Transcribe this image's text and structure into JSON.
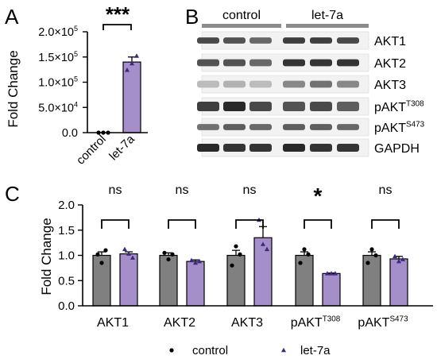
{
  "colors": {
    "control": "#808080",
    "let7a": "#a48fcb",
    "axis": "#000000",
    "blot_band": "#2a2a2a",
    "blot_bg": "#f2f2f2",
    "header_bar": "#8c8c8c"
  },
  "panel_a": {
    "letter": "A",
    "significance": "***",
    "chart_data": {
      "type": "bar",
      "categories": [
        "control",
        "let-7a"
      ],
      "values": [
        0,
        140000
      ],
      "errors": [
        0,
        10000
      ],
      "points": [
        [
          0,
          0,
          0
        ],
        [
          124000,
          137000,
          152000
        ]
      ],
      "ylabel": "Fold Change",
      "ylim": [
        0,
        200000
      ],
      "yticks": [
        0,
        50000,
        100000,
        150000,
        200000
      ],
      "ytick_labels": [
        {
          "mant": "0.0",
          "exp": ""
        },
        {
          "mant": "5.0×10",
          "exp": "4"
        },
        {
          "mant": "1.0×10",
          "exp": "5"
        },
        {
          "mant": "1.5×10",
          "exp": "5"
        },
        {
          "mant": "2.0×10",
          "exp": "5"
        }
      ]
    }
  },
  "panel_b": {
    "letter": "B",
    "group_labels": [
      "control",
      "let-7a"
    ],
    "lanes_per_group": 3,
    "rows": [
      {
        "label": "AKT1",
        "sup": "",
        "intensity": [
          0.75,
          0.7,
          0.6,
          0.8,
          0.8,
          0.75
        ],
        "height": 0.35
      },
      {
        "label": "AKT2",
        "sup": "",
        "intensity": [
          0.7,
          0.7,
          0.6,
          0.85,
          0.85,
          0.85
        ],
        "height": 0.4
      },
      {
        "label": "AKT3",
        "sup": "",
        "intensity": [
          0.2,
          0.25,
          0.2,
          0.45,
          0.55,
          0.45
        ],
        "height": 0.4
      },
      {
        "label": "pAKT",
        "sup": "T308",
        "intensity": [
          0.8,
          0.9,
          0.75,
          0.7,
          0.75,
          0.65
        ],
        "height": 0.55
      },
      {
        "label": "pAKT",
        "sup": "S473",
        "intensity": [
          0.55,
          0.65,
          0.6,
          0.65,
          0.65,
          0.6
        ],
        "height": 0.35
      },
      {
        "label": "GAPDH",
        "sup": "",
        "intensity": [
          0.9,
          0.85,
          0.85,
          0.9,
          0.85,
          0.85
        ],
        "height": 0.45
      }
    ]
  },
  "panel_c": {
    "letter": "C",
    "chart_data": {
      "type": "bar",
      "categories": [
        {
          "label": "AKT1",
          "sup": ""
        },
        {
          "label": "AKT2",
          "sup": ""
        },
        {
          "label": "AKT3",
          "sup": ""
        },
        {
          "label": "pAKT",
          "sup": "T308"
        },
        {
          "label": "pAKT",
          "sup": "S473"
        }
      ],
      "series": [
        {
          "name": "control",
          "marker": "circle",
          "values": [
            1.0,
            1.0,
            1.0,
            1.0,
            1.0
          ],
          "errors": [
            0.07,
            0.05,
            0.1,
            0.07,
            0.07
          ],
          "points": [
            [
              1.02,
              0.85,
              1.1
            ],
            [
              1.05,
              0.92,
              1.02
            ],
            [
              0.8,
              1.18,
              1.02
            ],
            [
              0.85,
              1.12,
              1.02
            ],
            [
              0.85,
              1.12,
              1.0
            ]
          ]
        },
        {
          "name": "let-7a",
          "marker": "triangle",
          "values": [
            1.03,
            0.88,
            1.35,
            0.64,
            0.93
          ],
          "errors": [
            0.04,
            0.03,
            0.22,
            0.01,
            0.05
          ],
          "points": [
            [
              1.12,
              1.03,
              0.95
            ],
            [
              0.9,
              0.85,
              0.88
            ],
            [
              1.7,
              1.22,
              1.12
            ],
            [
              0.64,
              0.64,
              0.64
            ],
            [
              0.98,
              0.88,
              0.92
            ]
          ]
        }
      ],
      "significance": [
        "ns",
        "ns",
        "ns",
        "*",
        "ns"
      ],
      "ylabel": "Fold Change",
      "ylim": [
        0,
        2.0
      ],
      "yticks": [
        0,
        0.5,
        1.0,
        1.5,
        2.0
      ],
      "ytick_labels": [
        "0.0",
        "0.5",
        "1.0",
        "1.5",
        "2.0"
      ],
      "legend_position": "bottom"
    }
  }
}
